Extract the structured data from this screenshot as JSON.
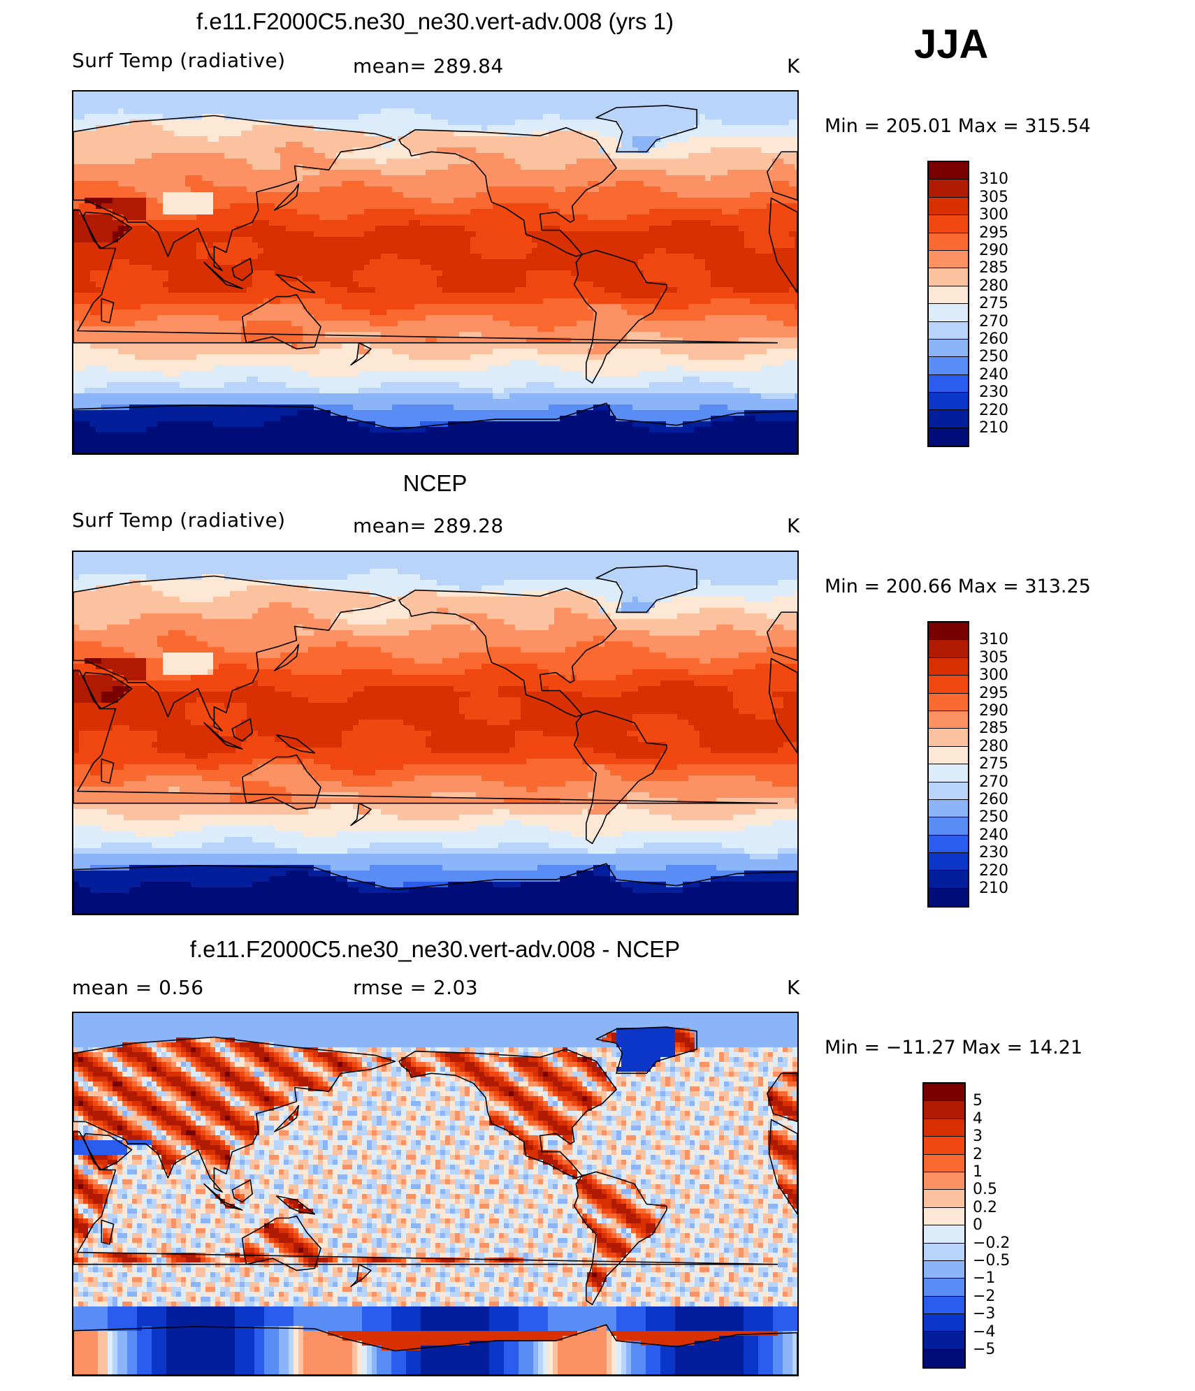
{
  "season": "JJA",
  "panels": [
    {
      "title": "f.e11.F2000C5.ne30_ne30.vert-adv.008 (yrs 1)",
      "left_label": "Surf Temp (radiative)",
      "center_label": "mean=  289.84",
      "units": "K",
      "minmax": "Min  =  205.01  Max  =  315.54",
      "colorbar": {
        "labels": [
          "310",
          "305",
          "300",
          "295",
          "290",
          "285",
          "280",
          "275",
          "270",
          "260",
          "250",
          "240",
          "230",
          "220",
          "210"
        ],
        "colors": [
          "#7a0000",
          "#b01a00",
          "#d83000",
          "#f04810",
          "#fa6a30",
          "#fc9264",
          "#fcc2a0",
          "#fde8d6",
          "#dcecfa",
          "#b8d4fa",
          "#8cb4f8",
          "#5a8cf6",
          "#2a5cee",
          "#0c36c8",
          "#031e9a",
          "#000c78"
        ]
      },
      "map_palette": "temp"
    },
    {
      "title": "NCEP",
      "left_label": "Surf Temp (radiative)",
      "center_label": "mean=  289.28",
      "units": "K",
      "minmax": "Min  =  200.66  Max  =  313.25",
      "colorbar": {
        "labels": [
          "310",
          "305",
          "300",
          "295",
          "290",
          "285",
          "280",
          "275",
          "270",
          "260",
          "250",
          "240",
          "230",
          "220",
          "210"
        ],
        "colors": [
          "#7a0000",
          "#b01a00",
          "#d83000",
          "#f04810",
          "#fa6a30",
          "#fc9264",
          "#fcc2a0",
          "#fde8d6",
          "#dcecfa",
          "#b8d4fa",
          "#8cb4f8",
          "#5a8cf6",
          "#2a5cee",
          "#0c36c8",
          "#031e9a",
          "#000c78"
        ]
      },
      "map_palette": "temp"
    },
    {
      "title": "f.e11.F2000C5.ne30_ne30.vert-adv.008 - NCEP",
      "left_label": "mean =     0.56",
      "center_label": "rmse =     2.03",
      "units": "K",
      "minmax": "Min  =  −11.27  Max  =    14.21",
      "colorbar": {
        "labels": [
          "5",
          "4",
          "3",
          "2",
          "1",
          "0.5",
          "0.2",
          "0",
          "−0.2",
          "−0.5",
          "−1",
          "−2",
          "−3",
          "−4",
          "−5"
        ],
        "colors": [
          "#7a0000",
          "#b01a00",
          "#d83000",
          "#f04810",
          "#fa6a30",
          "#fc9264",
          "#fcc2a0",
          "#fde8d6",
          "#dcecfa",
          "#b8d4fa",
          "#8cb4f8",
          "#5a8cf6",
          "#2a5cee",
          "#0c36c8",
          "#031e9a",
          "#000c78"
        ]
      },
      "map_palette": "diff"
    }
  ]
}
